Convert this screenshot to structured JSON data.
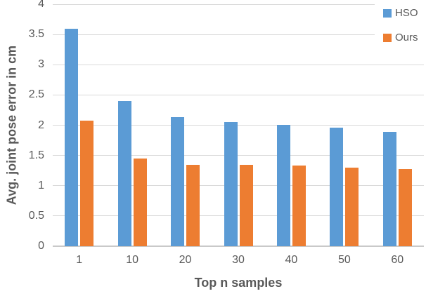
{
  "chart_data": {
    "type": "bar",
    "title": "",
    "categories": [
      "1",
      "10",
      "20",
      "30",
      "40",
      "50",
      "60"
    ],
    "series": [
      {
        "name": "HSO",
        "color": "#5B9BD5",
        "values": [
          3.59,
          2.4,
          2.13,
          2.05,
          2.0,
          1.96,
          1.89
        ]
      },
      {
        "name": "Ours",
        "color": "#ED7D31",
        "values": [
          2.08,
          1.45,
          1.35,
          1.35,
          1.33,
          1.3,
          1.28
        ]
      }
    ],
    "xlabel": "Top n samples",
    "ylabel": "Avg. joint pose error in cm",
    "ylim": [
      0,
      4
    ],
    "ytick_step": 0.5,
    "yticks": [
      "0",
      "0.5",
      "1",
      "1.5",
      "2",
      "2.5",
      "3",
      "3.5",
      "4"
    ],
    "grid": true,
    "legend_position": "top-right",
    "colors": {
      "gridline": "#D9D9D9",
      "axis_line": "#C9C9C9",
      "label_text": "#595959"
    }
  }
}
